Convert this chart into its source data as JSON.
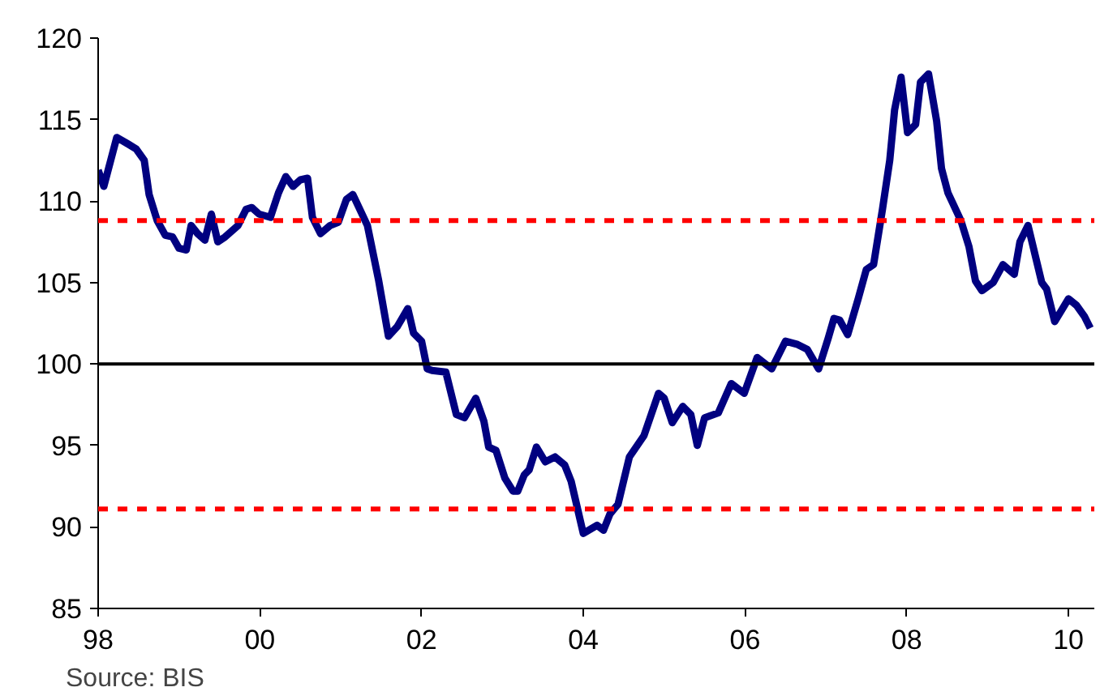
{
  "chart_data": {
    "type": "line",
    "x": [
      1998.0,
      1998.07,
      1998.23,
      1998.37,
      1998.47,
      1998.57,
      1998.63,
      1998.73,
      1998.83,
      1998.92,
      1999.0,
      1999.09,
      1999.15,
      1999.23,
      1999.32,
      1999.4,
      1999.48,
      1999.57,
      1999.73,
      1999.83,
      1999.9,
      1999.99,
      2000.13,
      2000.23,
      2000.32,
      2000.41,
      2000.5,
      2000.59,
      2000.65,
      2000.75,
      2000.87,
      2000.97,
      2001.07,
      2001.15,
      2001.33,
      2001.47,
      2001.59,
      2001.7,
      2001.83,
      2001.9,
      2002.0,
      2002.07,
      2002.13,
      2002.3,
      2002.43,
      2002.53,
      2002.67,
      2002.77,
      2002.83,
      2002.92,
      2003.03,
      2003.13,
      2003.19,
      2003.27,
      2003.33,
      2003.42,
      2003.53,
      2003.65,
      2003.77,
      2003.85,
      2004.0,
      2004.17,
      2004.25,
      2004.33,
      2004.43,
      2004.57,
      2004.75,
      2004.93,
      2005.0,
      2005.1,
      2005.23,
      2005.33,
      2005.41,
      2005.5,
      2005.67,
      2005.83,
      2005.99,
      2006.15,
      2006.33,
      2006.5,
      2006.65,
      2006.77,
      2006.91,
      2007.03,
      2007.1,
      2007.17,
      2007.27,
      2007.4,
      2007.5,
      2007.59,
      2007.7,
      2007.79,
      2007.85,
      2007.93,
      2008.01,
      2008.11,
      2008.17,
      2008.27,
      2008.37,
      2008.43,
      2008.51,
      2008.67,
      2008.77,
      2008.85,
      2008.93,
      2009.07,
      2009.19,
      2009.33,
      2009.4,
      2009.5,
      2009.67,
      2009.73,
      2009.83,
      2010.0,
      2010.1,
      2010.2,
      2010.27
    ],
    "series": [
      {
        "color": "#000080",
        "values": [
          111.9,
          110.9,
          113.9,
          113.5,
          113.2,
          112.5,
          110.4,
          108.8,
          107.9,
          107.8,
          107.1,
          107.0,
          108.5,
          108.0,
          107.6,
          109.2,
          107.5,
          107.8,
          108.5,
          109.5,
          109.6,
          109.2,
          109.0,
          110.5,
          111.5,
          110.9,
          111.3,
          111.4,
          109.0,
          108.0,
          108.5,
          108.7,
          110.1,
          110.4,
          108.5,
          105.1,
          101.7,
          102.3,
          103.4,
          101.9,
          101.4,
          99.7,
          99.6,
          99.5,
          96.9,
          96.7,
          97.9,
          96.5,
          94.9,
          94.7,
          93.0,
          92.2,
          92.2,
          93.2,
          93.5,
          94.9,
          94.0,
          94.3,
          93.8,
          92.8,
          89.6,
          90.1,
          89.8,
          90.8,
          91.4,
          94.3,
          95.6,
          98.2,
          97.9,
          96.4,
          97.4,
          96.9,
          95.0,
          96.7,
          97.0,
          98.8,
          98.2,
          100.4,
          99.7,
          101.4,
          101.2,
          100.9,
          99.7,
          101.6,
          102.8,
          102.7,
          101.8,
          104.0,
          105.8,
          106.1,
          109.5,
          112.5,
          115.6,
          117.6,
          114.2,
          114.7,
          117.3,
          117.8,
          114.9,
          112.0,
          110.5,
          108.8,
          107.2,
          105.1,
          104.5,
          105.0,
          106.1,
          105.5,
          107.5,
          108.5,
          105.0,
          104.6,
          102.6,
          104.0,
          103.6,
          102.9,
          102.2
        ]
      }
    ],
    "xlim": [
      1998,
      2010.32
    ],
    "ylim": [
      85,
      120
    ],
    "xticks": [
      {
        "value": 1998,
        "label": "98"
      },
      {
        "value": 2000,
        "label": "00"
      },
      {
        "value": 2002,
        "label": "02"
      },
      {
        "value": 2004,
        "label": "04"
      },
      {
        "value": 2006,
        "label": "06"
      },
      {
        "value": 2008,
        "label": "08"
      },
      {
        "value": 2010,
        "label": "10"
      }
    ],
    "yticks": [
      85,
      90,
      95,
      100,
      105,
      110,
      115,
      120
    ],
    "ref_lines": [
      {
        "axis": "y",
        "value": 100,
        "color": "#000000",
        "line_style": "solid"
      },
      {
        "axis": "y",
        "value": 108.8,
        "color": "#ff0000",
        "line_style": "dashed"
      },
      {
        "axis": "y",
        "value": 91.1,
        "color": "#ff0000",
        "line_style": "dashed"
      }
    ],
    "annotations": [
      "Source: BIS"
    ],
    "grid": false,
    "line_style": "solid"
  }
}
